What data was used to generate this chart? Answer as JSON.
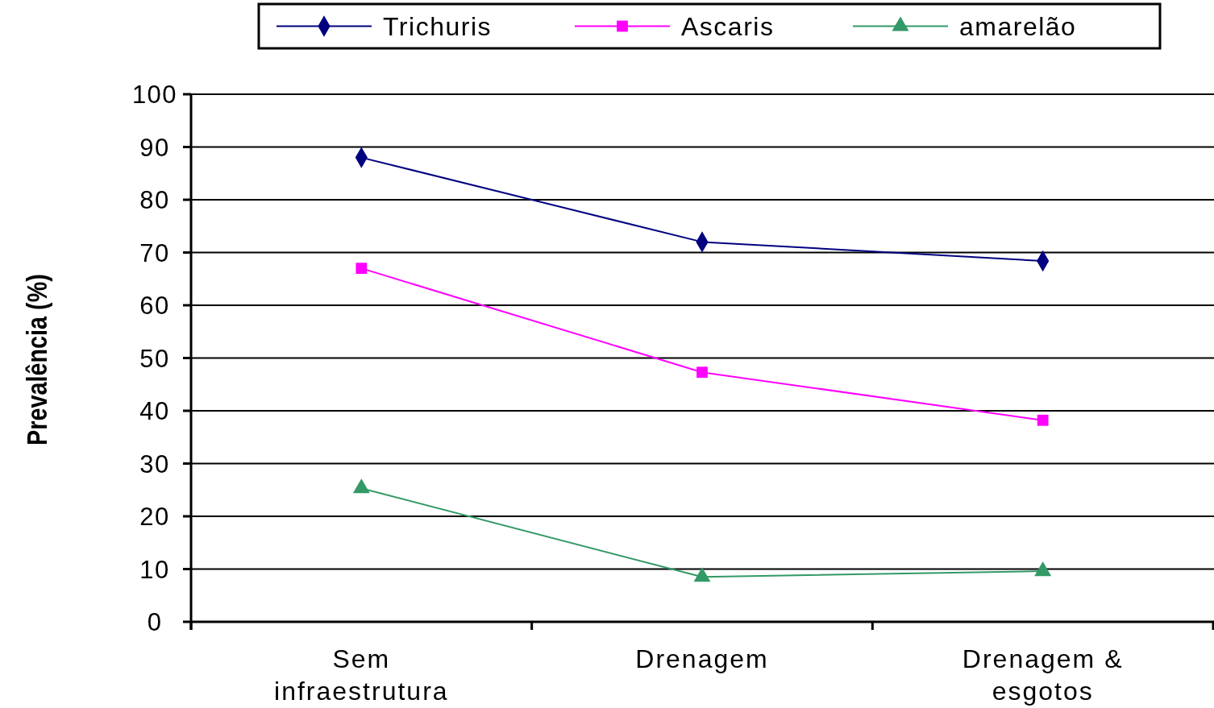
{
  "chart_data": {
    "type": "line",
    "ylabel": "Prevalência (%)",
    "categories": [
      "Sem\ninfraestrutura",
      "Drenagem",
      "Drenagem &\nesgotos"
    ],
    "series": [
      {
        "name": "Trichuris",
        "color": "#000080",
        "marker": "diamond",
        "values": [
          88,
          72,
          68.4
        ]
      },
      {
        "name": "Ascaris",
        "color": "#ff00ff",
        "marker": "square",
        "values": [
          67,
          47.3,
          38.2
        ]
      },
      {
        "name": "amarelão",
        "color": "#339966",
        "marker": "triangle",
        "values": [
          25.3,
          8.5,
          9.6
        ]
      }
    ],
    "ylim": [
      0,
      100
    ],
    "yticks": [
      0,
      10,
      20,
      30,
      40,
      50,
      60,
      70,
      80,
      90,
      100
    ],
    "grid": "y",
    "legend": "top"
  }
}
